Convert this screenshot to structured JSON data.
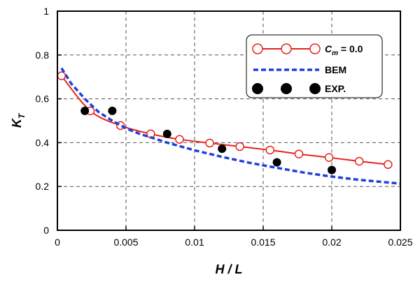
{
  "chart_data": {
    "type": "line",
    "title": "",
    "xlabel": "H / L",
    "ylabel_main": "K",
    "ylabel_sub": "T",
    "xlim": [
      0,
      0.025
    ],
    "ylim": [
      0,
      1
    ],
    "x_ticks": [
      0,
      0.005,
      0.01,
      0.015,
      0.02,
      0.025
    ],
    "x_tick_labels": [
      "0",
      "0.005",
      "0.01",
      "0.015",
      "0.02",
      "0.025"
    ],
    "y_ticks": [
      0,
      0.2,
      0.4,
      0.6,
      0.8,
      1.0
    ],
    "y_tick_labels": [
      "0",
      "0.2",
      "0.4",
      "0.6",
      "0.8",
      "1"
    ],
    "grid": true,
    "legend_position": "top-right",
    "series": [
      {
        "key": "cm",
        "legend_main": "C",
        "legend_sub": "m",
        "legend_suffix": " = 0.0",
        "style": "solid-line-open-circles",
        "color": "#e8231c",
        "x": [
          0.0003,
          0.0024,
          0.0046,
          0.0068,
          0.0089,
          0.0111,
          0.0133,
          0.0155,
          0.0176,
          0.0198,
          0.022,
          0.0241
        ],
        "y": [
          0.705,
          0.545,
          0.478,
          0.44,
          0.415,
          0.398,
          0.382,
          0.366,
          0.348,
          0.332,
          0.315,
          0.3
        ]
      },
      {
        "key": "bem",
        "legend_main": "BEM",
        "style": "dashed-line",
        "color": "#1f3fdc",
        "x": [
          0.0003,
          0.001,
          0.002,
          0.003,
          0.004,
          0.005,
          0.006,
          0.008,
          0.01,
          0.012,
          0.014,
          0.016,
          0.018,
          0.02,
          0.022,
          0.025
        ],
        "y": [
          0.74,
          0.67,
          0.6,
          0.54,
          0.5,
          0.465,
          0.44,
          0.4,
          0.365,
          0.335,
          0.308,
          0.285,
          0.263,
          0.245,
          0.23,
          0.213
        ]
      },
      {
        "key": "exp",
        "legend_main": "EXP.",
        "style": "filled-circles",
        "color": "#000000",
        "x": [
          0.002,
          0.004,
          0.008,
          0.012,
          0.016,
          0.02
        ],
        "y": [
          0.545,
          0.545,
          0.44,
          0.372,
          0.31,
          0.275
        ]
      }
    ]
  }
}
